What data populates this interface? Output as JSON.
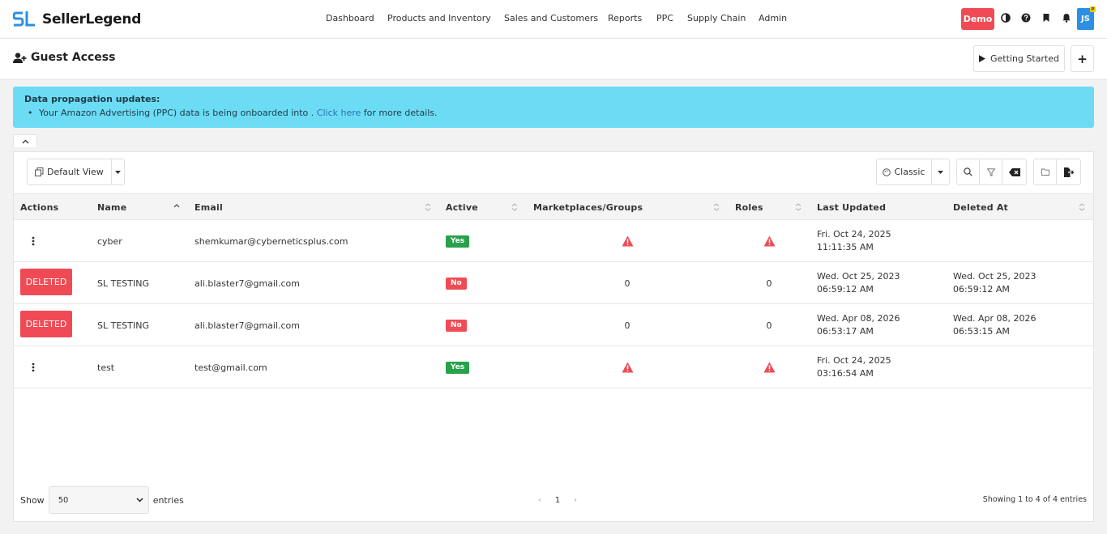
{
  "brand": {
    "name": "SellerLegend"
  },
  "nav": {
    "items": [
      "Dashboard",
      "Products and Inventory",
      "Sales and Customers",
      "Reports",
      "PPC",
      "Supply Chain",
      "Admin"
    ]
  },
  "toolbar_right": {
    "demo_label": "Demo",
    "avatar_initials": "JS",
    "avatar_badge": "P"
  },
  "page": {
    "title": "Guest Access",
    "getting_started_label": "Getting Started",
    "add_label": "+"
  },
  "alert": {
    "title": "Data propagation updates:",
    "line_prefix": "Your Amazon Advertising (PPC) data is being onboarded into . ",
    "link_text": "Click here",
    "line_suffix": " for more details."
  },
  "grid_toolbar": {
    "view_label": "Default View",
    "mode_label": "Classic"
  },
  "table": {
    "columns": [
      "Actions",
      "Name",
      "Email",
      "Active",
      "Marketplaces/Groups",
      "Roles",
      "Last Updated",
      "Deleted At"
    ],
    "rows": [
      {
        "action": "menu",
        "deleted_label": "",
        "name": "cyber",
        "email": "shemkumar@cyberneticsplus.com",
        "active": "Yes",
        "marketplaces": "warning",
        "roles": "warning",
        "last_updated_1": "Fri. Oct 24, 2025",
        "last_updated_2": "11:11:35 AM",
        "deleted_1": "",
        "deleted_2": ""
      },
      {
        "action": "deleted",
        "deleted_label": "DELETED",
        "name": "SL TESTING",
        "email": "ali.blaster7@gmail.com",
        "active": "No",
        "marketplaces": "0",
        "roles": "0",
        "last_updated_1": "Wed. Oct 25, 2023",
        "last_updated_2": "06:59:12 AM",
        "deleted_1": "Wed. Oct 25, 2023",
        "deleted_2": "06:59:12 AM"
      },
      {
        "action": "deleted",
        "deleted_label": "DELETED",
        "name": "SL TESTING",
        "email": "ali.blaster7@gmail.com",
        "active": "No",
        "marketplaces": "0",
        "roles": "0",
        "last_updated_1": "Wed. Apr 08, 2026",
        "last_updated_2": "06:53:17 AM",
        "deleted_1": "Wed. Apr 08, 2026",
        "deleted_2": "06:53:15 AM"
      },
      {
        "action": "menu",
        "deleted_label": "",
        "name": "test",
        "email": "test@gmail.com",
        "active": "Yes",
        "marketplaces": "warning",
        "roles": "warning",
        "last_updated_1": "Fri. Oct 24, 2025",
        "last_updated_2": "03:16:54 AM",
        "deleted_1": "",
        "deleted_2": ""
      }
    ]
  },
  "footer": {
    "show_label": "Show",
    "entries_value": "50",
    "entries_label": "entries",
    "page": "1",
    "info": "Showing 1 to 4 of 4 entries"
  },
  "colors": {
    "accent_blue": "#2b8fe3",
    "danger": "#f04b55",
    "success": "#27a14a",
    "alert_bg": "#6cdcf5"
  }
}
